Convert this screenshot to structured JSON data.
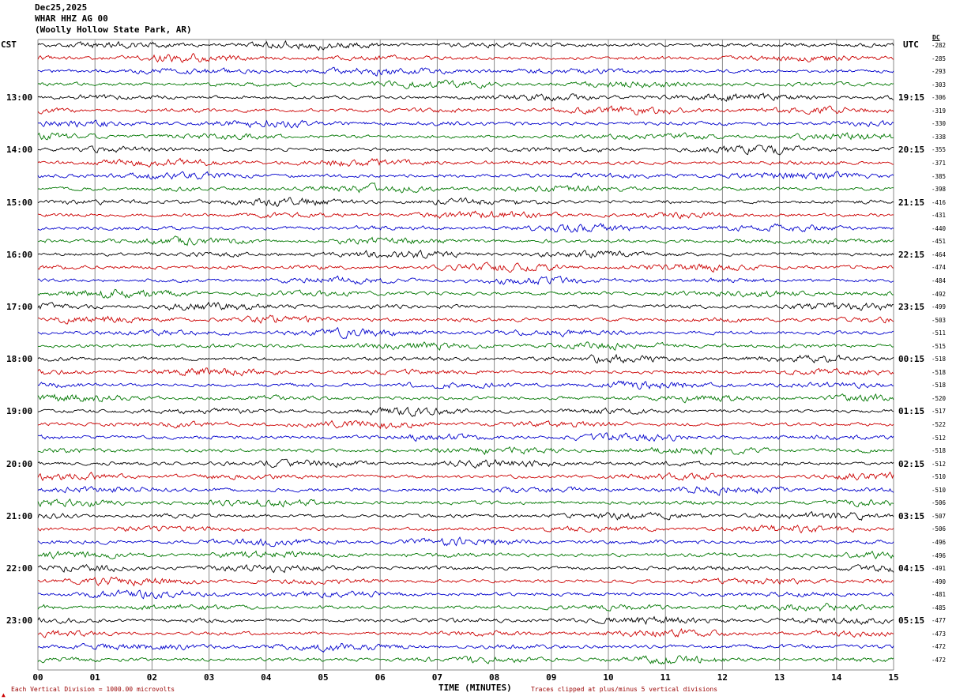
{
  "header": {
    "date": "Dec25,2025",
    "station": "WHAR HHZ AG 00",
    "location": "(Woolly Hollow State Park, AR)"
  },
  "axes": {
    "left_header": "CST",
    "right_header": "UTC",
    "dc_header": "DC",
    "x_title": "TIME (MINUTES)",
    "x_ticks": [
      "00",
      "01",
      "02",
      "03",
      "04",
      "05",
      "06",
      "07",
      "08",
      "09",
      "10",
      "11",
      "12",
      "13",
      "14",
      "15"
    ]
  },
  "footer": {
    "left": "Each Vertical Division = 1000.00 microvolts",
    "right": "Traces clipped at plus/minus 5 vertical divisions"
  },
  "icons": {
    "corner_mark": "▲"
  },
  "chart_data": {
    "type": "line",
    "title": "WHAR HHZ AG 00 (Woolly Hollow State Park, AR) helicorder, Dec25,2025",
    "xlabel": "TIME (MINUTES)",
    "x_range_minutes": [
      0,
      15
    ],
    "row_duration_minutes": 15,
    "rows_per_hour": 4,
    "time_zone_left": "CST",
    "time_zone_right": "UTC",
    "microvolts_per_division": 1000.0,
    "clip_divisions": 5,
    "trace_colors": [
      "#000000",
      "#cc0000",
      "#0000cc",
      "#007700"
    ],
    "waveform_note": "continuous ambient seismic noise traces; amplitudes a few vertical divisions, no readable discrete data points",
    "rows": [
      {
        "cst": "",
        "utc": "",
        "dc": "-282"
      },
      {
        "cst": "",
        "utc": "",
        "dc": "-285"
      },
      {
        "cst": "",
        "utc": "",
        "dc": "-293"
      },
      {
        "cst": "",
        "utc": "",
        "dc": "-303"
      },
      {
        "cst": "13:00",
        "utc": "19:15",
        "dc": "-306"
      },
      {
        "cst": "",
        "utc": "",
        "dc": "-319"
      },
      {
        "cst": "",
        "utc": "",
        "dc": "-330"
      },
      {
        "cst": "",
        "utc": "",
        "dc": "-338"
      },
      {
        "cst": "14:00",
        "utc": "20:15",
        "dc": "-355"
      },
      {
        "cst": "",
        "utc": "",
        "dc": "-371"
      },
      {
        "cst": "",
        "utc": "",
        "dc": "-385"
      },
      {
        "cst": "",
        "utc": "",
        "dc": "-398"
      },
      {
        "cst": "15:00",
        "utc": "21:15",
        "dc": "-416"
      },
      {
        "cst": "",
        "utc": "",
        "dc": "-431"
      },
      {
        "cst": "",
        "utc": "",
        "dc": "-440"
      },
      {
        "cst": "",
        "utc": "",
        "dc": "-451"
      },
      {
        "cst": "16:00",
        "utc": "22:15",
        "dc": "-464"
      },
      {
        "cst": "",
        "utc": "",
        "dc": "-474"
      },
      {
        "cst": "",
        "utc": "",
        "dc": "-484"
      },
      {
        "cst": "",
        "utc": "",
        "dc": "-492"
      },
      {
        "cst": "17:00",
        "utc": "23:15",
        "dc": "-499"
      },
      {
        "cst": "",
        "utc": "",
        "dc": "-503"
      },
      {
        "cst": "",
        "utc": "",
        "dc": "-511"
      },
      {
        "cst": "",
        "utc": "",
        "dc": "-515"
      },
      {
        "cst": "18:00",
        "utc": "00:15",
        "dc": "-518"
      },
      {
        "cst": "",
        "utc": "",
        "dc": "-518"
      },
      {
        "cst": "",
        "utc": "",
        "dc": "-518"
      },
      {
        "cst": "",
        "utc": "",
        "dc": "-520"
      },
      {
        "cst": "19:00",
        "utc": "01:15",
        "dc": "-517"
      },
      {
        "cst": "",
        "utc": "",
        "dc": "-522"
      },
      {
        "cst": "",
        "utc": "",
        "dc": "-512"
      },
      {
        "cst": "",
        "utc": "",
        "dc": "-518"
      },
      {
        "cst": "20:00",
        "utc": "02:15",
        "dc": "-512"
      },
      {
        "cst": "",
        "utc": "",
        "dc": "-510"
      },
      {
        "cst": "",
        "utc": "",
        "dc": "-510"
      },
      {
        "cst": "",
        "utc": "",
        "dc": "-506"
      },
      {
        "cst": "21:00",
        "utc": "03:15",
        "dc": "-507"
      },
      {
        "cst": "",
        "utc": "",
        "dc": "-506"
      },
      {
        "cst": "",
        "utc": "",
        "dc": "-496"
      },
      {
        "cst": "",
        "utc": "",
        "dc": "-496"
      },
      {
        "cst": "22:00",
        "utc": "04:15",
        "dc": "-491"
      },
      {
        "cst": "",
        "utc": "",
        "dc": "-490"
      },
      {
        "cst": "",
        "utc": "",
        "dc": "-481"
      },
      {
        "cst": "",
        "utc": "",
        "dc": "-485"
      },
      {
        "cst": "23:00",
        "utc": "05:15",
        "dc": "-477"
      },
      {
        "cst": "",
        "utc": "",
        "dc": "-473"
      },
      {
        "cst": "",
        "utc": "",
        "dc": "-472"
      },
      {
        "cst": "",
        "utc": "",
        "dc": "-472"
      }
    ]
  }
}
